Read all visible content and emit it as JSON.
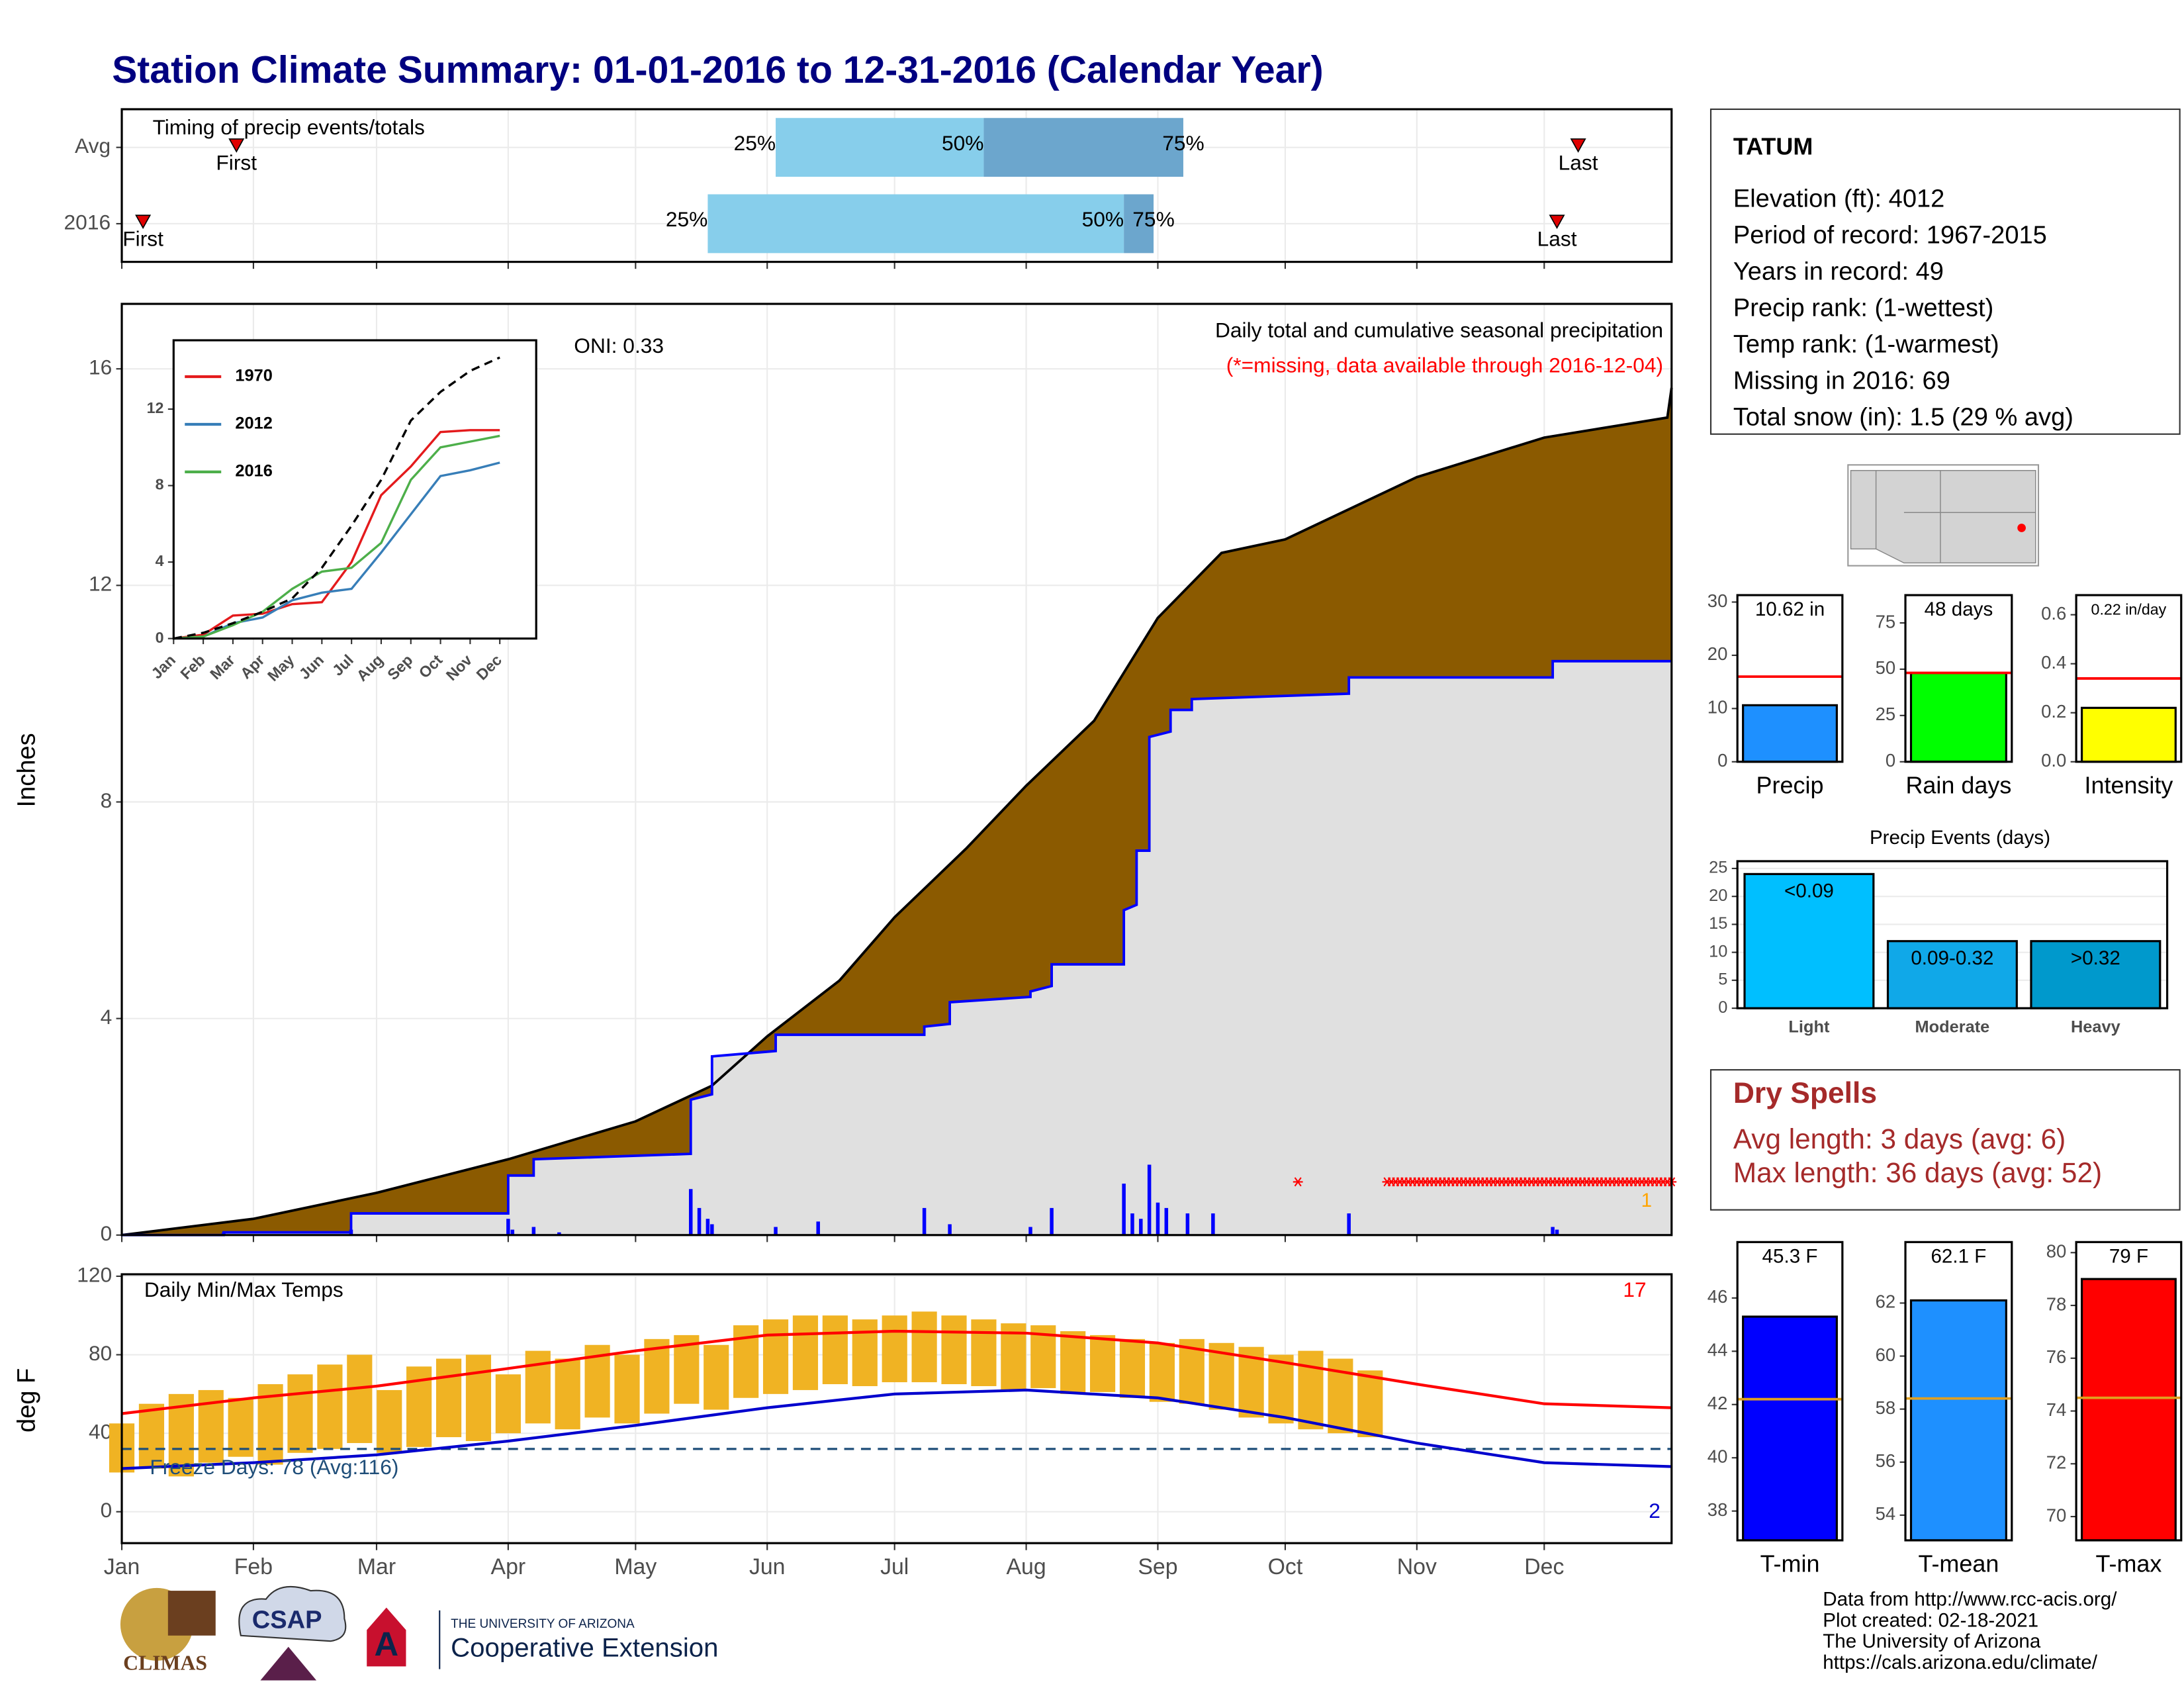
{
  "title": "Station Climate Summary: 01-01-2016 to 12-31-2016 (Calendar Year)",
  "chart_data": [
    {
      "type": "timing",
      "title": "Timing of precip events/totals",
      "xlim": [
        1,
        366
      ],
      "xticks": [
        1,
        32,
        61,
        92,
        122,
        153,
        183,
        214,
        245,
        275,
        306,
        336
      ],
      "categories": [
        "Avg",
        "2016"
      ],
      "first": [
        28,
        6
      ],
      "last": [
        344,
        339
      ],
      "q25": [
        155,
        139
      ],
      "q50": [
        204,
        237
      ],
      "q75": [
        251,
        244
      ],
      "labels": {
        "first": "First",
        "last": "Last",
        "q25": "25%",
        "q50": "50%",
        "q75": "75%"
      },
      "colors": {
        "lower": "#87ceeb",
        "upper": "#6ca6cd",
        "marker": "#e00000"
      }
    },
    {
      "type": "area",
      "ylabel": "Inches",
      "annotations": [
        "ONI: 0.33",
        "Daily total and cumulative seasonal precipitation",
        "(*=missing, data available through 2016-12-04)",
        "1"
      ],
      "xlim": [
        1,
        366
      ],
      "xticks": [
        1,
        32,
        61,
        92,
        122,
        153,
        183,
        214,
        245,
        275,
        306,
        336
      ],
      "ylim": [
        0,
        17.2
      ],
      "yticks": [
        0,
        4,
        8,
        12,
        16
      ],
      "grid": true,
      "series": [
        {
          "color": "#000000",
          "fill": "#8b5a00",
          "x": [
            1,
            32,
            61,
            92,
            122,
            140,
            153,
            170,
            183,
            200,
            214,
            230,
            245,
            260,
            275,
            306,
            336,
            365,
            366
          ],
          "values": [
            0,
            0.3,
            0.78,
            1.4,
            2.1,
            2.76,
            3.67,
            4.7,
            5.87,
            7.15,
            8.3,
            9.5,
            11.4,
            12.6,
            12.85,
            14.0,
            14.73,
            15.1,
            15.65
          ]
        },
        {
          "color": "#0000ff",
          "fill": "#e0e0e0",
          "x": [
            1,
            25,
            25,
            55,
            55,
            92,
            92,
            98,
            98,
            135,
            135,
            140,
            140,
            155,
            155,
            190,
            190,
            196,
            196,
            215,
            215,
            220,
            220,
            237,
            237,
            240,
            240,
            243,
            243,
            248,
            248,
            253,
            253,
            290,
            290,
            338,
            338,
            366
          ],
          "values": [
            0,
            0,
            0.05,
            0.05,
            0.4,
            0.4,
            1.1,
            1.1,
            1.4,
            1.5,
            2.5,
            2.6,
            3.3,
            3.4,
            3.7,
            3.7,
            3.85,
            3.9,
            4.3,
            4.4,
            4.5,
            4.6,
            5.0,
            5.0,
            6.0,
            6.1,
            7.1,
            7.1,
            9.2,
            9.3,
            9.7,
            9.7,
            9.9,
            10.0,
            10.3,
            10.3,
            10.6,
            10.6
          ]
        }
      ],
      "daily": {
        "color": "#0000ff",
        "x": [
          25,
          55,
          92,
          93,
          98,
          104,
          135,
          137,
          139,
          140,
          155,
          165,
          190,
          196,
          215,
          220,
          237,
          239,
          241,
          243,
          245,
          247,
          252,
          258,
          290,
          338,
          339
        ],
        "values": [
          0.05,
          0.1,
          0.3,
          0.1,
          0.15,
          0.05,
          0.85,
          0.5,
          0.3,
          0.2,
          0.15,
          0.25,
          0.5,
          0.2,
          0.15,
          0.5,
          0.95,
          0.4,
          0.3,
          1.3,
          0.6,
          0.5,
          0.4,
          0.4,
          0.4,
          0.15,
          0.1
        ]
      },
      "missing": {
        "color": "#ff0000",
        "x": [
          278,
          299,
          300,
          301,
          302,
          303,
          304,
          305,
          306,
          307,
          308,
          309,
          310,
          311,
          312,
          313,
          314,
          315,
          316,
          317,
          318,
          319,
          320,
          321,
          322,
          323,
          324,
          325,
          326,
          327,
          328,
          329,
          330,
          331,
          332,
          333,
          334,
          335,
          336,
          337,
          338,
          339,
          340,
          341,
          342,
          343,
          344,
          345,
          346,
          347,
          348,
          349,
          350,
          351,
          352,
          353,
          354,
          355,
          356,
          357,
          358,
          359,
          360,
          361,
          362,
          363,
          364,
          365,
          366
        ]
      }
    },
    {
      "type": "line",
      "categories": [
        "Jan",
        "Feb",
        "Mar",
        "Apr",
        "May",
        "Jun",
        "Jul",
        "Aug",
        "Sep",
        "Oct",
        "Nov",
        "Dec"
      ],
      "ylim": [
        0,
        15.6
      ],
      "yticks": [
        0,
        4,
        8,
        12
      ],
      "series": [
        {
          "name": "1970",
          "color": "#e41a1c",
          "values": [
            0,
            0.2,
            1.2,
            1.3,
            1.8,
            1.9,
            4.0,
            7.5,
            9.0,
            10.8,
            10.9,
            10.9
          ]
        },
        {
          "name": "2012",
          "color": "#377eb8",
          "values": [
            0,
            0.1,
            0.8,
            1.1,
            2.0,
            2.4,
            2.6,
            4.5,
            6.5,
            8.5,
            8.8,
            9.2
          ]
        },
        {
          "name": "2016",
          "color": "#4daf4a",
          "values": [
            0,
            0.1,
            0.7,
            1.4,
            2.6,
            3.5,
            3.7,
            5.0,
            8.3,
            10.0,
            10.3,
            10.6
          ]
        },
        {
          "color": "#000000",
          "dash": true,
          "values": [
            0,
            0.3,
            0.8,
            1.4,
            2.1,
            3.7,
            5.9,
            8.3,
            11.4,
            12.9,
            14.0,
            14.7
          ]
        }
      ]
    },
    {
      "type": "temperature",
      "title": "Daily Min/Max Temps",
      "ylabel": "deg F",
      "annotations": [
        "17",
        "2",
        "Freeze Days: 78 (Avg:116)"
      ],
      "xlim": [
        1,
        366
      ],
      "xticks": [
        {
          "value": 1,
          "label": "Jan"
        },
        {
          "value": 32,
          "label": "Feb"
        },
        {
          "value": 61,
          "label": "Mar"
        },
        {
          "value": 92,
          "label": "Apr"
        },
        {
          "value": 122,
          "label": "May"
        },
        {
          "value": 153,
          "label": "Jun"
        },
        {
          "value": 183,
          "label": "Jul"
        },
        {
          "value": 214,
          "label": "Aug"
        },
        {
          "value": 245,
          "label": "Sep"
        },
        {
          "value": 275,
          "label": "Oct"
        },
        {
          "value": 306,
          "label": "Nov"
        },
        {
          "value": 336,
          "label": "Dec"
        }
      ],
      "ylim": [
        -16,
        121
      ],
      "yticks": [
        0,
        40,
        80,
        120
      ],
      "grid": true,
      "freeze": 32,
      "freeze_color": "#1f4e79",
      "x": [
        1,
        32,
        61,
        92,
        122,
        153,
        183,
        214,
        245,
        275,
        306,
        336,
        366
      ],
      "series": [
        {
          "color": "#ff0000",
          "values": [
            50,
            58,
            64,
            73,
            82,
            90,
            92,
            91,
            86,
            76,
            65,
            55,
            53
          ]
        },
        {
          "color": "#0000cd",
          "values": [
            22,
            25,
            29,
            36,
            44,
            53,
            60,
            62,
            58,
            48,
            35,
            25,
            23
          ]
        }
      ],
      "daily": {
        "color": "#f0b323",
        "x": [
          1,
          8,
          15,
          22,
          29,
          36,
          43,
          50,
          57,
          64,
          71,
          78,
          85,
          92,
          99,
          106,
          113,
          120,
          127,
          134,
          141,
          148,
          155,
          162,
          169,
          176,
          183,
          190,
          197,
          204,
          211,
          218,
          225,
          232,
          239,
          246,
          253,
          260,
          267,
          274,
          281,
          288,
          295
        ],
        "min": [
          20,
          22,
          18,
          25,
          28,
          24,
          30,
          32,
          35,
          30,
          33,
          38,
          36,
          40,
          45,
          42,
          48,
          45,
          50,
          55,
          52,
          58,
          60,
          62,
          65,
          64,
          66,
          66,
          65,
          64,
          62,
          63,
          60,
          61,
          58,
          56,
          55,
          52,
          48,
          45,
          42,
          40,
          38
        ],
        "max": [
          45,
          55,
          60,
          62,
          58,
          65,
          70,
          75,
          80,
          62,
          74,
          78,
          80,
          70,
          82,
          78,
          85,
          80,
          88,
          90,
          85,
          95,
          98,
          100,
          100,
          98,
          100,
          102,
          100,
          98,
          96,
          95,
          92,
          90,
          88,
          86,
          88,
          86,
          84,
          80,
          82,
          78,
          72
        ]
      }
    },
    {
      "type": "bar",
      "xlabel": "Precip",
      "values": [
        10.62
      ],
      "value_labels": [
        "10.62 in"
      ],
      "color": "#1e90ff",
      "avg": 16,
      "avg_color": "#ff0000",
      "ylim": [
        0,
        31.3
      ],
      "yticks": [
        0,
        10,
        20,
        30
      ]
    },
    {
      "type": "bar",
      "xlabel": "Rain days",
      "values": [
        48
      ],
      "value_labels": [
        "48 days"
      ],
      "color": "#00ff00",
      "avg": 48,
      "avg_color": "#ff0000",
      "ylim": [
        0,
        90
      ],
      "yticks": [
        0,
        25,
        50,
        75
      ]
    },
    {
      "type": "bar",
      "xlabel": "Intensity",
      "values": [
        0.22
      ],
      "value_labels": [
        "0.22 in/day"
      ],
      "color": "#ffff00",
      "avg": 0.34,
      "avg_color": "#ff0000",
      "ylim": [
        0,
        0.68
      ],
      "yticks": [
        {
          "value": 0,
          "label": "0.0"
        },
        {
          "value": 0.2,
          "label": "0.2"
        },
        {
          "value": 0.4,
          "label": "0.4"
        },
        {
          "value": 0.6,
          "label": "0.6"
        }
      ]
    },
    {
      "type": "bar",
      "title": "Precip Events (days)",
      "categories": [
        "Light",
        "Moderate",
        "Heavy"
      ],
      "values": [
        24,
        12,
        12
      ],
      "bar_labels": [
        "<0.09",
        "0.09-0.32",
        ">0.32"
      ],
      "colors": [
        "#00bfff",
        "#10a8e8",
        "#0099cc"
      ],
      "ylim": [
        0,
        26.3
      ],
      "yticks": [
        0,
        5,
        10,
        15,
        20,
        25
      ],
      "grid": true
    },
    {
      "type": "bar",
      "xlabel": "T-min",
      "values": [
        45.3
      ],
      "value_labels": [
        "45.3 F"
      ],
      "color": "#0000ff",
      "avg": 42.2,
      "avg_color": "#e0a020",
      "ylim": [
        36.9,
        48.1
      ],
      "yticks": [
        38,
        40,
        42,
        44,
        46
      ]
    },
    {
      "type": "bar",
      "xlabel": "T-mean",
      "values": [
        62.1
      ],
      "value_labels": [
        "62.1 F"
      ],
      "color": "#1e90ff",
      "avg": 58.4,
      "avg_color": "#e0a020",
      "ylim": [
        53.05,
        64.3
      ],
      "yticks": [
        54,
        56,
        58,
        60,
        62
      ]
    },
    {
      "type": "bar",
      "xlabel": "T-max",
      "values": [
        79
      ],
      "value_labels": [
        "79 F"
      ],
      "color": "#ff0000",
      "avg": 74.5,
      "avg_color": "#e0a020",
      "ylim": [
        69.1,
        80.4
      ],
      "yticks": [
        70,
        72,
        74,
        76,
        78,
        80
      ]
    }
  ],
  "station": {
    "name": "TATUM",
    "lines": [
      "Elevation (ft): 4012",
      "Period of record: 1967-2015",
      "Years in record: 49",
      "Precip rank:  (1-wettest)",
      "Temp rank:  (1-warmest)",
      "Missing in 2016: 69",
      "Total snow (in): 1.5 (29 % avg)"
    ]
  },
  "dry_spells": {
    "title": "Dry Spells",
    "lines": [
      "Avg length: 3 days (avg: 6)",
      "Max length: 36 days (avg: 52)"
    ]
  },
  "footer": [
    "Data from http://www.rcc-acis.org/",
    "Plot created: 02-18-2021",
    "The University of Arizona",
    "https://cals.arizona.edu/climate/"
  ],
  "logos": [
    "CLIMAS",
    "CSAP",
    "THE UNIVERSITY OF ARIZONA",
    "Cooperative Extension"
  ]
}
